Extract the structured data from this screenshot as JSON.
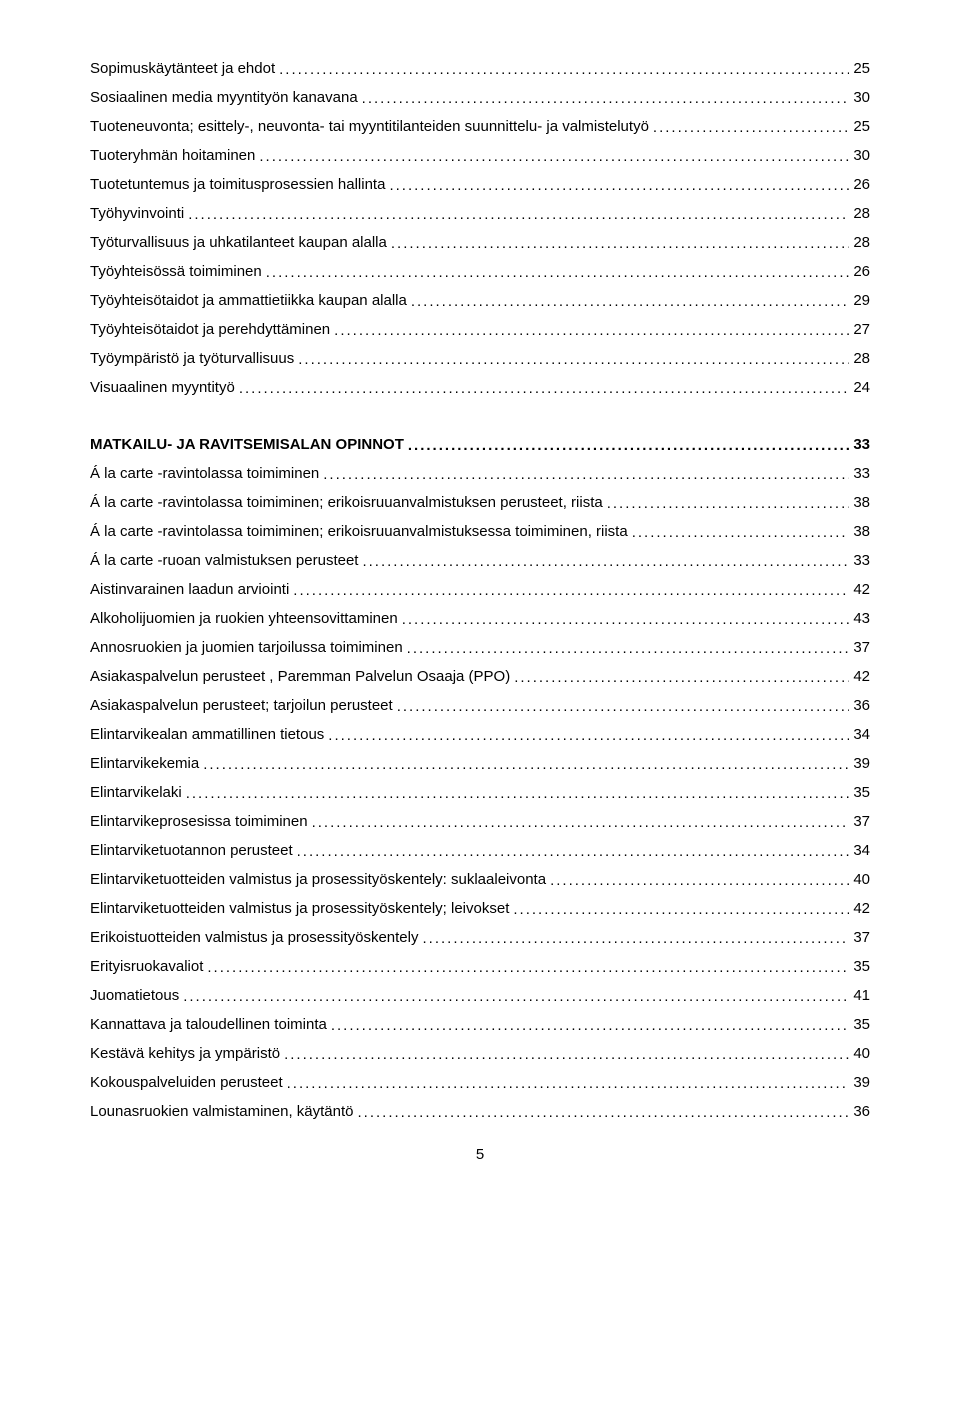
{
  "toc_group_1": [
    {
      "label": "Sopimuskäytänteet ja ehdot",
      "page": "25"
    },
    {
      "label": "Sosiaalinen media myyntityön kanavana",
      "page": "30"
    },
    {
      "label": "Tuoteneuvonta; esittely-, neuvonta- tai myyntitilanteiden suunnittelu- ja valmistelutyö",
      "page": "25"
    },
    {
      "label": "Tuoteryhmän hoitaminen",
      "page": "30"
    },
    {
      "label": "Tuotetuntemus ja toimitusprosessien hallinta",
      "page": "26"
    },
    {
      "label": "Työhyvinvointi",
      "page": "28"
    },
    {
      "label": "Työturvallisuus ja uhkatilanteet kaupan alalla",
      "page": "28"
    },
    {
      "label": "Työyhteisössä toimiminen",
      "page": "26"
    },
    {
      "label": "Työyhteisötaidot ja ammattietiikka kaupan alalla",
      "page": "29"
    },
    {
      "label": "Työyhteisötaidot ja perehdyttäminen",
      "page": "27"
    },
    {
      "label": "Työympäristö ja työturvallisuus",
      "page": "28"
    },
    {
      "label": "Visuaalinen myyntityö",
      "page": "24"
    }
  ],
  "section_heading": {
    "label": "MATKAILU- JA RAVITSEMISALAN OPINNOT",
    "page": "33"
  },
  "toc_group_2": [
    {
      "label": "Á la carte -ravintolassa toimiminen",
      "page": "33"
    },
    {
      "label": "Á la carte -ravintolassa toimiminen; erikoisruuanvalmistuksen perusteet, riista",
      "page": "38"
    },
    {
      "label": "Á la carte -ravintolassa toimiminen; erikoisruuanvalmistuksessa toimiminen, riista",
      "page": "38"
    },
    {
      "label": "Á la carte -ruoan valmistuksen perusteet",
      "page": "33"
    },
    {
      "label": "Aistinvarainen laadun arviointi",
      "page": "42"
    },
    {
      "label": "Alkoholijuomien ja ruokien yhteensovittaminen",
      "page": "43"
    },
    {
      "label": "Annosruokien ja juomien tarjoilussa toimiminen",
      "page": "37"
    },
    {
      "label": "Asiakaspalvelun perusteet , Paremman Palvelun Osaaja (PPO)",
      "page": "42"
    },
    {
      "label": "Asiakaspalvelun perusteet; tarjoilun perusteet",
      "page": "36"
    },
    {
      "label": "Elintarvikealan ammatillinen tietous",
      "page": "34"
    },
    {
      "label": "Elintarvikekemia",
      "page": "39"
    },
    {
      "label": "Elintarvikelaki",
      "page": "35"
    },
    {
      "label": "Elintarvikeprosesissa toimiminen",
      "page": "37"
    },
    {
      "label": "Elintarviketuotannon perusteet",
      "page": "34"
    },
    {
      "label": "Elintarviketuotteiden valmistus ja prosessityöskentely: suklaaleivonta",
      "page": "40"
    },
    {
      "label": "Elintarviketuotteiden valmistus ja prosessityöskentely; leivokset",
      "page": "42"
    },
    {
      "label": "Erikoistuotteiden valmistus ja prosessityöskentely",
      "page": "37"
    },
    {
      "label": "Erityisruokavaliot",
      "page": "35"
    },
    {
      "label": "Juomatietous",
      "page": "41"
    },
    {
      "label": "Kannattava ja taloudellinen toiminta",
      "page": "35"
    },
    {
      "label": "Kestävä kehitys ja ympäristö",
      "page": "40"
    },
    {
      "label": "Kokouspalveluiden perusteet",
      "page": "39"
    },
    {
      "label": "Lounasruokien valmistaminen, käytäntö",
      "page": "36"
    }
  ],
  "page_number": "5"
}
